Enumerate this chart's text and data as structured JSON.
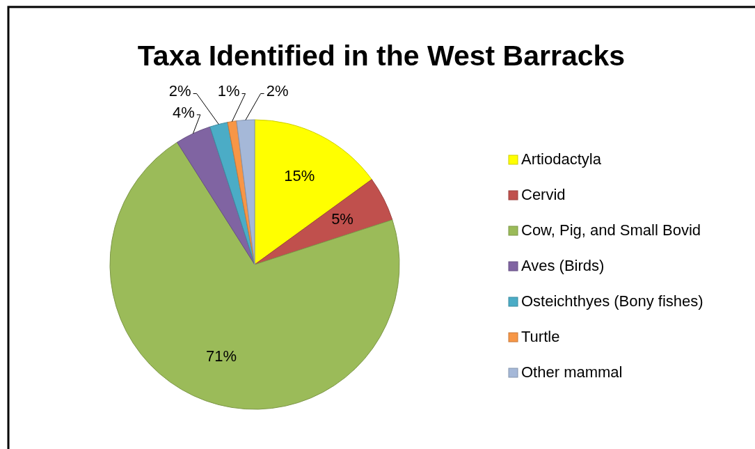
{
  "chart_data": {
    "type": "pie",
    "title": "Taxa Identified in the West Barracks",
    "categories": [
      "Artiodactyla",
      "Cervid",
      "Cow, Pig, and Small Bovid",
      "Aves (Birds)",
      "Osteichthyes (Bony fishes)",
      "Turtle",
      "Other mammal"
    ],
    "values": [
      15,
      5,
      71,
      4,
      2,
      1,
      2
    ],
    "colors": [
      "#ffff00",
      "#c0504d",
      "#9bbb59",
      "#8064a2",
      "#4bacc6",
      "#f79646",
      "#a5b8d8"
    ],
    "value_labels": [
      "15%",
      "5%",
      "71%",
      "4%",
      "2%",
      "1%",
      "2%"
    ],
    "legend": "right"
  }
}
